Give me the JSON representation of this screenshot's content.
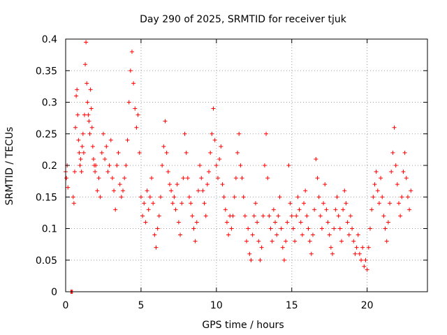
{
  "chart_data": {
    "type": "scatter",
    "title": "Day 290 of 2025, SRMTID for receiver tjuk",
    "xlabel": "GPS time / hours",
    "ylabel": "SRMTID / TECUs",
    "xlim": [
      0,
      24
    ],
    "ylim": [
      0,
      0.4
    ],
    "x_ticks": [
      0,
      5,
      10,
      15,
      20
    ],
    "x_tick_labels": [
      "0",
      "5",
      "10",
      "15",
      "20"
    ],
    "y_ticks": [
      0,
      0.05,
      0.1,
      0.15,
      0.2,
      0.25,
      0.3,
      0.35,
      0.4
    ],
    "y_tick_labels": [
      "0",
      "0.05",
      "0.1",
      "0.15",
      "0.2",
      "0.25",
      "0.3",
      "0.35",
      "0.4"
    ],
    "grid": true,
    "marker": "plus",
    "color": "#ff0000",
    "series": [
      {
        "points": [
          [
            0.0,
            0.19
          ],
          [
            0.05,
            0.18
          ],
          [
            0.1,
            0.2
          ],
          [
            0.15,
            0.165
          ],
          [
            0.35,
            0.0
          ],
          [
            0.4,
            0.0
          ],
          [
            0.45,
            0.0
          ],
          [
            0.5,
            0.15
          ],
          [
            0.55,
            0.14
          ],
          [
            0.6,
            0.19
          ],
          [
            0.65,
            0.26
          ],
          [
            0.7,
            0.31
          ],
          [
            0.75,
            0.32
          ],
          [
            0.8,
            0.28
          ],
          [
            0.85,
            0.24
          ],
          [
            0.9,
            0.22
          ],
          [
            0.95,
            0.2
          ],
          [
            1.0,
            0.21
          ],
          [
            1.05,
            0.19
          ],
          [
            1.1,
            0.23
          ],
          [
            1.15,
            0.25
          ],
          [
            1.2,
            0.22
          ],
          [
            1.25,
            0.28
          ],
          [
            1.3,
            0.36
          ],
          [
            1.35,
            0.395
          ],
          [
            1.4,
            0.33
          ],
          [
            1.45,
            0.3
          ],
          [
            1.5,
            0.28
          ],
          [
            1.55,
            0.27
          ],
          [
            1.6,
            0.25
          ],
          [
            1.65,
            0.32
          ],
          [
            1.7,
            0.29
          ],
          [
            1.75,
            0.26
          ],
          [
            1.8,
            0.23
          ],
          [
            1.85,
            0.21
          ],
          [
            1.9,
            0.2
          ],
          [
            1.95,
            0.19
          ],
          [
            2.0,
            0.2
          ],
          [
            2.1,
            0.16
          ],
          [
            2.2,
            0.18
          ],
          [
            2.3,
            0.15
          ],
          [
            2.4,
            0.22
          ],
          [
            2.5,
            0.25
          ],
          [
            2.6,
            0.21
          ],
          [
            2.7,
            0.23
          ],
          [
            2.8,
            0.19
          ],
          [
            2.9,
            0.2
          ],
          [
            3.0,
            0.24
          ],
          [
            3.1,
            0.18
          ],
          [
            3.2,
            0.16
          ],
          [
            3.3,
            0.13
          ],
          [
            3.4,
            0.2
          ],
          [
            3.5,
            0.22
          ],
          [
            3.6,
            0.17
          ],
          [
            3.7,
            0.15
          ],
          [
            3.8,
            0.16
          ],
          [
            3.9,
            0.18
          ],
          [
            4.0,
            0.2
          ],
          [
            4.1,
            0.24
          ],
          [
            4.2,
            0.3
          ],
          [
            4.3,
            0.35
          ],
          [
            4.4,
            0.38
          ],
          [
            4.5,
            0.33
          ],
          [
            4.6,
            0.29
          ],
          [
            4.7,
            0.26
          ],
          [
            4.8,
            0.28
          ],
          [
            4.9,
            0.22
          ],
          [
            5.0,
            0.15
          ],
          [
            5.1,
            0.12
          ],
          [
            5.2,
            0.14
          ],
          [
            5.3,
            0.11
          ],
          [
            5.4,
            0.16
          ],
          [
            5.5,
            0.13
          ],
          [
            5.6,
            0.15
          ],
          [
            5.7,
            0.18
          ],
          [
            5.8,
            0.14
          ],
          [
            5.9,
            0.09
          ],
          [
            6.0,
            0.07
          ],
          [
            6.1,
            0.1
          ],
          [
            6.2,
            0.12
          ],
          [
            6.3,
            0.15
          ],
          [
            6.4,
            0.2
          ],
          [
            6.5,
            0.23
          ],
          [
            6.6,
            0.27
          ],
          [
            6.7,
            0.22
          ],
          [
            6.8,
            0.19
          ],
          [
            6.9,
            0.17
          ],
          [
            7.0,
            0.16
          ],
          [
            7.1,
            0.14
          ],
          [
            7.2,
            0.15
          ],
          [
            7.3,
            0.13
          ],
          [
            7.4,
            0.17
          ],
          [
            7.5,
            0.11
          ],
          [
            7.6,
            0.09
          ],
          [
            7.7,
            0.14
          ],
          [
            7.8,
            0.18
          ],
          [
            7.9,
            0.25
          ],
          [
            8.0,
            0.22
          ],
          [
            8.1,
            0.18
          ],
          [
            8.2,
            0.15
          ],
          [
            8.3,
            0.14
          ],
          [
            8.4,
            0.12
          ],
          [
            8.5,
            0.1
          ],
          [
            8.6,
            0.08
          ],
          [
            8.7,
            0.11
          ],
          [
            8.8,
            0.16
          ],
          [
            8.9,
            0.2
          ],
          [
            9.0,
            0.18
          ],
          [
            9.1,
            0.16
          ],
          [
            9.2,
            0.14
          ],
          [
            9.3,
            0.12
          ],
          [
            9.4,
            0.17
          ],
          [
            9.5,
            0.19
          ],
          [
            9.6,
            0.22
          ],
          [
            9.7,
            0.25
          ],
          [
            9.8,
            0.29
          ],
          [
            9.9,
            0.24
          ],
          [
            10.0,
            0.2
          ],
          [
            10.1,
            0.18
          ],
          [
            10.2,
            0.21
          ],
          [
            10.3,
            0.23
          ],
          [
            10.4,
            0.17
          ],
          [
            10.5,
            0.15
          ],
          [
            10.6,
            0.13
          ],
          [
            10.7,
            0.11
          ],
          [
            10.8,
            0.09
          ],
          [
            10.9,
            0.12
          ],
          [
            11.0,
            0.1
          ],
          [
            11.1,
            0.12
          ],
          [
            11.2,
            0.15
          ],
          [
            11.3,
            0.18
          ],
          [
            11.4,
            0.22
          ],
          [
            11.5,
            0.25
          ],
          [
            11.6,
            0.2
          ],
          [
            11.7,
            0.18
          ],
          [
            11.8,
            0.15
          ],
          [
            11.9,
            0.12
          ],
          [
            12.0,
            0.08
          ],
          [
            12.1,
            0.1
          ],
          [
            12.2,
            0.06
          ],
          [
            12.3,
            0.05
          ],
          [
            12.4,
            0.09
          ],
          [
            12.5,
            0.12
          ],
          [
            12.6,
            0.14
          ],
          [
            12.7,
            0.11
          ],
          [
            12.8,
            0.08
          ],
          [
            12.9,
            0.05
          ],
          [
            13.0,
            0.07
          ],
          [
            13.1,
            0.12
          ],
          [
            13.2,
            0.2
          ],
          [
            13.3,
            0.25
          ],
          [
            13.4,
            0.18
          ],
          [
            13.5,
            0.12
          ],
          [
            13.6,
            0.1
          ],
          [
            13.7,
            0.08
          ],
          [
            13.8,
            0.13
          ],
          [
            13.9,
            0.11
          ],
          [
            14.0,
            0.09
          ],
          [
            14.1,
            0.12
          ],
          [
            14.2,
            0.15
          ],
          [
            14.3,
            0.1
          ],
          [
            14.4,
            0.07
          ],
          [
            14.5,
            0.05
          ],
          [
            14.6,
            0.08
          ],
          [
            14.7,
            0.11
          ],
          [
            14.8,
            0.2
          ],
          [
            14.9,
            0.14
          ],
          [
            15.0,
            0.12
          ],
          [
            15.1,
            0.1
          ],
          [
            15.2,
            0.08
          ],
          [
            15.3,
            0.12
          ],
          [
            15.4,
            0.15
          ],
          [
            15.5,
            0.13
          ],
          [
            15.6,
            0.11
          ],
          [
            15.7,
            0.09
          ],
          [
            15.8,
            0.14
          ],
          [
            15.9,
            0.16
          ],
          [
            16.0,
            0.12
          ],
          [
            16.1,
            0.1
          ],
          [
            16.2,
            0.08
          ],
          [
            16.3,
            0.06
          ],
          [
            16.4,
            0.09
          ],
          [
            16.5,
            0.13
          ],
          [
            16.6,
            0.21
          ],
          [
            16.7,
            0.18
          ],
          [
            16.8,
            0.15
          ],
          [
            16.9,
            0.12
          ],
          [
            17.0,
            0.1
          ],
          [
            17.1,
            0.14
          ],
          [
            17.2,
            0.17
          ],
          [
            17.3,
            0.13
          ],
          [
            17.4,
            0.11
          ],
          [
            17.5,
            0.09
          ],
          [
            17.6,
            0.07
          ],
          [
            17.7,
            0.06
          ],
          [
            17.8,
            0.1
          ],
          [
            17.9,
            0.13
          ],
          [
            18.0,
            0.15
          ],
          [
            18.1,
            0.12
          ],
          [
            18.2,
            0.1
          ],
          [
            18.3,
            0.08
          ],
          [
            18.4,
            0.13
          ],
          [
            18.5,
            0.16
          ],
          [
            18.6,
            0.14
          ],
          [
            18.7,
            0.11
          ],
          [
            18.8,
            0.09
          ],
          [
            18.9,
            0.12
          ],
          [
            19.0,
            0.1
          ],
          [
            19.1,
            0.08
          ],
          [
            19.2,
            0.06
          ],
          [
            19.3,
            0.07
          ],
          [
            19.4,
            0.09
          ],
          [
            19.5,
            0.06
          ],
          [
            19.6,
            0.05
          ],
          [
            19.7,
            0.07
          ],
          [
            19.8,
            0.04
          ],
          [
            19.9,
            0.05
          ],
          [
            20.0,
            0.035
          ],
          [
            20.1,
            0.07
          ],
          [
            20.2,
            0.1
          ],
          [
            20.3,
            0.13
          ],
          [
            20.4,
            0.15
          ],
          [
            20.5,
            0.17
          ],
          [
            20.6,
            0.19
          ],
          [
            20.7,
            0.16
          ],
          [
            20.8,
            0.14
          ],
          [
            20.9,
            0.18
          ],
          [
            21.0,
            0.15
          ],
          [
            21.1,
            0.12
          ],
          [
            21.2,
            0.1
          ],
          [
            21.3,
            0.08
          ],
          [
            21.4,
            0.11
          ],
          [
            21.5,
            0.14
          ],
          [
            21.6,
            0.19
          ],
          [
            21.7,
            0.22
          ],
          [
            21.8,
            0.26
          ],
          [
            21.9,
            0.2
          ],
          [
            22.0,
            0.17
          ],
          [
            22.1,
            0.14
          ],
          [
            22.2,
            0.12
          ],
          [
            22.3,
            0.15
          ],
          [
            22.4,
            0.19
          ],
          [
            22.5,
            0.22
          ],
          [
            22.6,
            0.18
          ],
          [
            22.7,
            0.15
          ],
          [
            22.8,
            0.13
          ],
          [
            22.9,
            0.16
          ]
        ]
      }
    ]
  }
}
